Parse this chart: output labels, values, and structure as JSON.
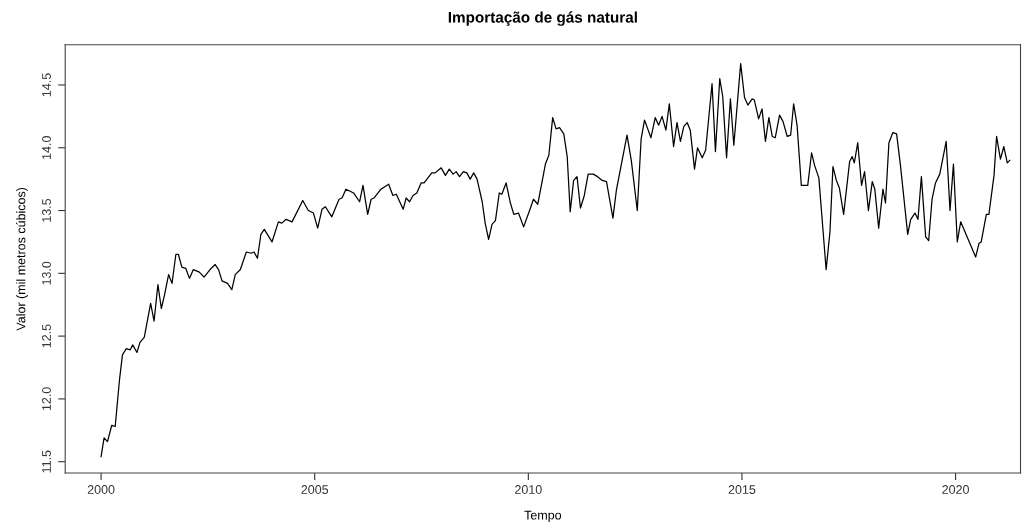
{
  "chart_data": {
    "type": "line",
    "title": "Importação de gás natural",
    "xlabel": "Tempo",
    "ylabel": "Valor (mil metros cúbicos)",
    "xlim": [
      1999.16,
      2021.52
    ],
    "ylim": [
      11.41,
      14.82
    ],
    "xticks": [
      2000,
      2005,
      2010,
      2015,
      2020
    ],
    "yticks": [
      {
        "value": 11.5,
        "label": "11.5"
      },
      {
        "value": 12.0,
        "label": "12.0"
      },
      {
        "value": 12.5,
        "label": "12.5"
      },
      {
        "value": 13.0,
        "label": "13.0"
      },
      {
        "value": 13.5,
        "label": "13.5"
      },
      {
        "value": 14.0,
        "label": "14.0"
      },
      {
        "value": 14.5,
        "label": "14.5"
      }
    ],
    "marker": "none",
    "line_style": "solid",
    "series": [
      {
        "color": "#000000",
        "x": [
          2000.0,
          2000.07,
          2000.15,
          2000.25,
          2000.33,
          2000.43,
          2000.5,
          2000.59,
          2000.68,
          2000.74,
          2000.84,
          2000.91,
          2001.01,
          2001.16,
          2001.24,
          2001.33,
          2001.41,
          2001.48,
          2001.58,
          2001.66,
          2001.75,
          2001.81,
          2001.89,
          2001.98,
          2002.07,
          2002.16,
          2002.3,
          2002.41,
          2002.55,
          2002.67,
          2002.75,
          2002.83,
          2002.96,
          2003.06,
          2003.14,
          2003.26,
          2003.4,
          2003.51,
          2003.58,
          2003.66,
          2003.74,
          2003.82,
          2004.0,
          2004.15,
          2004.23,
          2004.33,
          2004.47,
          2004.72,
          2004.85,
          2004.97,
          2005.07,
          2005.17,
          2005.25,
          2005.4,
          2005.57,
          2005.64,
          2005.73,
          2005.91,
          2006.05,
          2006.13,
          2006.24,
          2006.32,
          2006.39,
          2006.55,
          2006.73,
          2006.83,
          2006.91,
          2007.07,
          2007.14,
          2007.22,
          2007.3,
          2007.39,
          2007.49,
          2007.56,
          2007.74,
          2007.82,
          2007.96,
          2008.06,
          2008.15,
          2008.24,
          2008.31,
          2008.39,
          2008.48,
          2008.56,
          2008.64,
          2008.72,
          2008.8,
          2008.92,
          2008.99,
          2009.07,
          2009.15,
          2009.23,
          2009.32,
          2009.38,
          2009.48,
          2009.58,
          2009.66,
          2009.77,
          2009.89,
          2010.05,
          2010.12,
          2010.22,
          2010.4,
          2010.48,
          2010.57,
          2010.65,
          2010.73,
          2010.83,
          2010.91,
          2010.98,
          2011.06,
          2011.14,
          2011.22,
          2011.31,
          2011.4,
          2011.52,
          2011.62,
          2011.73,
          2011.83,
          2011.98,
          2012.06,
          2012.31,
          2012.41,
          2012.55,
          2012.64,
          2012.72,
          2012.87,
          2012.97,
          2013.05,
          2013.13,
          2013.22,
          2013.3,
          2013.4,
          2013.48,
          2013.56,
          2013.64,
          2013.72,
          2013.79,
          2013.89,
          2013.96,
          2014.07,
          2014.15,
          2014.3,
          2014.38,
          2014.48,
          2014.55,
          2014.64,
          2014.73,
          2014.81,
          2014.97,
          2015.06,
          2015.14,
          2015.24,
          2015.29,
          2015.39,
          2015.47,
          2015.55,
          2015.63,
          2015.71,
          2015.78,
          2015.88,
          2015.96,
          2016.06,
          2016.14,
          2016.21,
          2016.29,
          2016.39,
          2016.54,
          2016.63,
          2016.7,
          2016.8,
          2016.97,
          2017.06,
          2017.13,
          2017.21,
          2017.28,
          2017.38,
          2017.52,
          2017.58,
          2017.63,
          2017.71,
          2017.8,
          2017.87,
          2017.96,
          2018.05,
          2018.11,
          2018.2,
          2018.3,
          2018.36,
          2018.44,
          2018.53,
          2018.62,
          2018.71,
          2018.88,
          2018.95,
          2019.05,
          2019.12,
          2019.2,
          2019.3,
          2019.37,
          2019.45,
          2019.53,
          2019.63,
          2019.78,
          2019.87,
          2019.95,
          2020.04,
          2020.12,
          2020.47,
          2020.55,
          2020.6,
          2020.72,
          2020.78,
          2020.9,
          2020.96,
          2021.05,
          2021.13,
          2021.21,
          2021.27
        ],
        "values": [
          11.54,
          11.69,
          11.66,
          11.79,
          11.78,
          12.15,
          12.35,
          12.4,
          12.39,
          12.43,
          12.37,
          12.45,
          12.49,
          12.76,
          12.62,
          12.91,
          12.72,
          12.82,
          12.99,
          12.92,
          13.15,
          13.15,
          13.05,
          13.04,
          12.96,
          13.03,
          13.01,
          12.97,
          13.03,
          13.07,
          13.03,
          12.94,
          12.92,
          12.87,
          12.99,
          13.03,
          13.17,
          13.16,
          13.17,
          13.12,
          13.31,
          13.35,
          13.25,
          13.41,
          13.4,
          13.43,
          13.41,
          13.58,
          13.5,
          13.48,
          13.36,
          13.51,
          13.53,
          13.45,
          13.59,
          13.6,
          13.67,
          13.64,
          13.57,
          13.7,
          13.47,
          13.59,
          13.6,
          13.67,
          13.71,
          13.62,
          13.63,
          13.51,
          13.6,
          13.57,
          13.62,
          13.64,
          13.72,
          13.72,
          13.8,
          13.8,
          13.84,
          13.78,
          13.83,
          13.79,
          13.81,
          13.77,
          13.81,
          13.8,
          13.75,
          13.8,
          13.75,
          13.57,
          13.4,
          13.27,
          13.39,
          13.42,
          13.64,
          13.63,
          13.72,
          13.56,
          13.47,
          13.48,
          13.37,
          13.52,
          13.59,
          13.55,
          13.87,
          13.94,
          14.24,
          14.15,
          14.16,
          14.11,
          13.93,
          13.49,
          13.74,
          13.77,
          13.52,
          13.62,
          13.79,
          13.79,
          13.77,
          13.74,
          13.73,
          13.44,
          13.66,
          14.1,
          13.9,
          13.5,
          14.07,
          14.22,
          14.08,
          14.24,
          14.18,
          14.25,
          14.14,
          14.35,
          14.01,
          14.2,
          14.05,
          14.17,
          14.2,
          14.14,
          13.83,
          14.0,
          13.92,
          13.98,
          14.51,
          13.97,
          14.55,
          14.41,
          13.92,
          14.39,
          14.02,
          14.67,
          14.4,
          14.34,
          14.39,
          14.38,
          14.23,
          14.31,
          14.05,
          14.24,
          14.09,
          14.08,
          14.26,
          14.21,
          14.09,
          14.1,
          14.35,
          14.18,
          13.7,
          13.7,
          13.96,
          13.86,
          13.76,
          13.03,
          13.33,
          13.85,
          13.74,
          13.68,
          13.47,
          13.89,
          13.93,
          13.88,
          14.04,
          13.7,
          13.81,
          13.5,
          13.73,
          13.67,
          13.36,
          13.67,
          13.56,
          14.04,
          14.12,
          14.11,
          13.86,
          13.31,
          13.43,
          13.48,
          13.43,
          13.77,
          13.29,
          13.26,
          13.59,
          13.72,
          13.79,
          14.05,
          13.5,
          13.87,
          13.25,
          13.41,
          13.13,
          13.24,
          13.25,
          13.47,
          13.47,
          13.78,
          14.09,
          13.91,
          14.01,
          13.88,
          13.9
        ]
      }
    ]
  }
}
